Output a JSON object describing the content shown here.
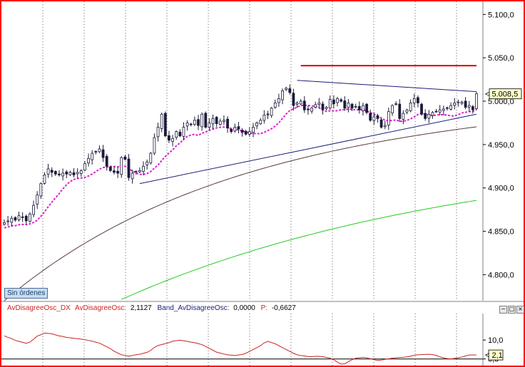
{
  "colors": {
    "border": "#ff0000",
    "candle_up": "#1b1b3a",
    "candle_down": "#1b1b3a",
    "ma_pink": "#dd22cc",
    "ma_brown": "#5a3b3b",
    "ma_green": "#22cc22",
    "trendline": "#1c1c7a",
    "resistance": "#dd0000",
    "osc": "#cc2222",
    "last_price_bg": "#ffffcc",
    "grid": "#666666"
  },
  "orders_label": "Sin órdenes",
  "indicator_legend": {
    "osc_name": "AvDisagreeOsc_DX",
    "osc_label": "AvDisagreeOsc:",
    "osc_value": "2,1127",
    "band_label": "Band_AvDisagreeOsc:",
    "band_value": "0,0000",
    "p_label": "P:",
    "p_value": "-0,6627"
  },
  "window_buttons": [
    "minimize-icon",
    "restore-icon",
    "close-icon"
  ],
  "chart_data": [
    {
      "type": "candlestick",
      "title": "",
      "xlabel": "",
      "ylabel": "",
      "ylim": [
        4770,
        5115
      ],
      "y_ticks": [
        "4.800,0",
        "4.850,0",
        "4.900,0",
        "4.950,0",
        "5.000,0",
        "5.050,0",
        "5.100,0"
      ],
      "y_tick_values": [
        4800,
        4850,
        4900,
        4950,
        5000,
        5050,
        5100
      ],
      "last_price_label": "5.008,5",
      "last_price": 5008.5,
      "grid": "vertical dotted",
      "n_bars": 130,
      "close": [
        4860,
        4862,
        4865,
        4863,
        4868,
        4866,
        4862,
        4870,
        4880,
        4892,
        4905,
        4915,
        4922,
        4918,
        4916,
        4915,
        4917,
        4916,
        4918,
        4915,
        4918,
        4920,
        4928,
        4934,
        4940,
        4942,
        4945,
        4935,
        4925,
        4920,
        4918,
        4917,
        4935,
        4933,
        4912,
        4917,
        4919,
        4920,
        4925,
        4930,
        4940,
        4958,
        4970,
        4985,
        4960,
        4955,
        4957,
        4965,
        4960,
        4970,
        4975,
        4973,
        4978,
        4972,
        4985,
        4970,
        4975,
        4980,
        4974,
        4977,
        4978,
        4969,
        4965,
        4970,
        4968,
        4964,
        4962,
        4965,
        4970,
        4975,
        4978,
        4984,
        4985,
        4992,
        4998,
        5003,
        5012,
        5015,
        5010,
        4995,
        4998,
        5000,
        4990,
        4990,
        4992,
        4996,
        4998,
        4990,
        4993,
        5002,
        4997,
        5003,
        5000,
        4992,
        4998,
        4992,
        4994,
        4990,
        4995,
        4987,
        4978,
        4982,
        4980,
        4970,
        4972,
        4988,
        4995,
        4997,
        4980,
        4986,
        4990,
        4998,
        5003,
        4998,
        4985,
        4980,
        4985,
        4987,
        4988,
        4990,
        4991,
        4992,
        4995,
        4998,
        4999,
        4999,
        4993,
        4995,
        4990,
        5008.5
      ]
    },
    {
      "type": "line",
      "title": "",
      "xlabel": "",
      "ylabel": "",
      "ylim": [
        -3.5,
        24
      ],
      "y_ticks": [
        "10,0",
        "0,0"
      ],
      "y_tick_values": [
        10,
        0
      ],
      "last_value_label": "2,1",
      "last_value": 2.1,
      "band": 0,
      "series": [
        {
          "values": [
            12.2,
            11.4,
            10.8,
            9.8,
            9.3,
            8.8,
            8.3,
            8.9,
            10.4,
            12.1,
            12.8,
            13.7,
            13.5,
            13.3,
            12.7,
            12.2,
            11.9,
            11.4,
            11.2,
            10.9,
            10.7,
            10.5,
            10.2,
            9.8,
            9.4,
            8.9,
            8.4,
            7.4,
            6.4,
            5.4,
            4.1,
            3.1,
            2.2,
            1.8,
            1.5,
            1.8,
            2.2,
            2.5,
            3.0,
            3.5,
            4.5,
            6.1,
            7.1,
            7.6,
            8.1,
            8.6,
            9.4,
            9.7,
            9.9,
            9.6,
            9.3,
            8.9,
            8.6,
            8.1,
            7.6,
            6.6,
            5.6,
            4.6,
            3.6,
            3.1,
            2.6,
            2.2,
            2.0,
            1.8,
            2.1,
            2.4,
            3.0,
            4.0,
            5.0,
            6.0,
            7.0,
            8.5,
            9.3,
            8.7,
            8.0,
            7.0,
            6.0,
            5.0,
            4.0,
            3.0,
            2.2,
            1.8,
            1.6,
            1.3,
            1.2,
            1.4,
            1.4,
            1.2,
            0.8,
            0.4,
            -0.4,
            -1.7,
            -2.7,
            -2.6,
            -1.4,
            -0.4,
            0.4,
            0.6,
            0.8,
            0.6,
            0.1,
            -0.4,
            -0.7,
            -0.6,
            -0.2,
            0.1,
            0.4,
            0.6,
            0.8,
            0.9,
            1.1,
            1.5,
            1.9,
            2.2,
            2.3,
            2.4,
            2.5,
            2.3,
            1.9,
            1.1,
            0.6,
            0.2,
            0.0,
            0.3,
            0.6,
            1.0,
            1.6,
            2.1,
            2.1,
            2.1
          ]
        }
      ]
    }
  ]
}
